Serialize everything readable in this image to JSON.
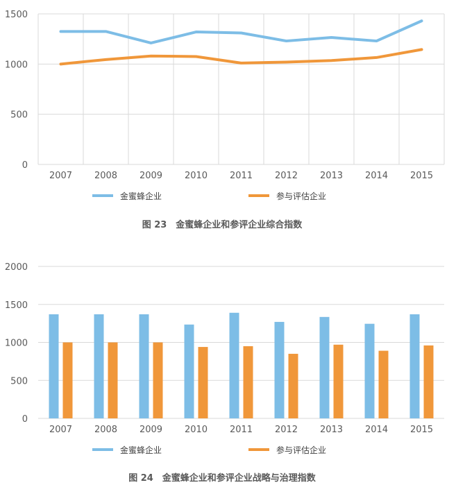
{
  "chart_data": [
    {
      "type": "line",
      "title": "图 23　金蜜蜂企业和参评企业综合指数",
      "categories": [
        "2007",
        "2008",
        "2009",
        "2010",
        "2011",
        "2012",
        "2013",
        "2014",
        "2015"
      ],
      "series": [
        {
          "name": "金蜜蜂企业",
          "color": "#7dbde6",
          "values": [
            1325,
            1325,
            1210,
            1320,
            1310,
            1230,
            1265,
            1230,
            1430
          ]
        },
        {
          "name": "参与评估企业",
          "color": "#f0973a",
          "values": [
            1000,
            1045,
            1080,
            1075,
            1010,
            1020,
            1035,
            1065,
            1145
          ]
        }
      ],
      "yticks": [
        "0",
        "500",
        "1000",
        "1500"
      ],
      "ylim": [
        0,
        1500
      ],
      "grid": "both",
      "legend": "bottom"
    },
    {
      "type": "bar",
      "title": "图 24　金蜜蜂企业和参评企业战略与治理指数",
      "categories": [
        "2007",
        "2008",
        "2009",
        "2010",
        "2011",
        "2012",
        "2013",
        "2014",
        "2015"
      ],
      "series": [
        {
          "name": "金蜜蜂企业",
          "color": "#7dbde6",
          "values": [
            1370,
            1370,
            1370,
            1235,
            1390,
            1270,
            1335,
            1245,
            1370
          ]
        },
        {
          "name": "参与评估企业",
          "color": "#f0973a",
          "values": [
            1000,
            1000,
            1000,
            940,
            950,
            850,
            970,
            890,
            960
          ]
        }
      ],
      "yticks": [
        "0",
        "500",
        "1000",
        "1500",
        "2000"
      ],
      "ylim": [
        0,
        2000
      ],
      "grid": "horizontal",
      "legend": "bottom"
    }
  ]
}
